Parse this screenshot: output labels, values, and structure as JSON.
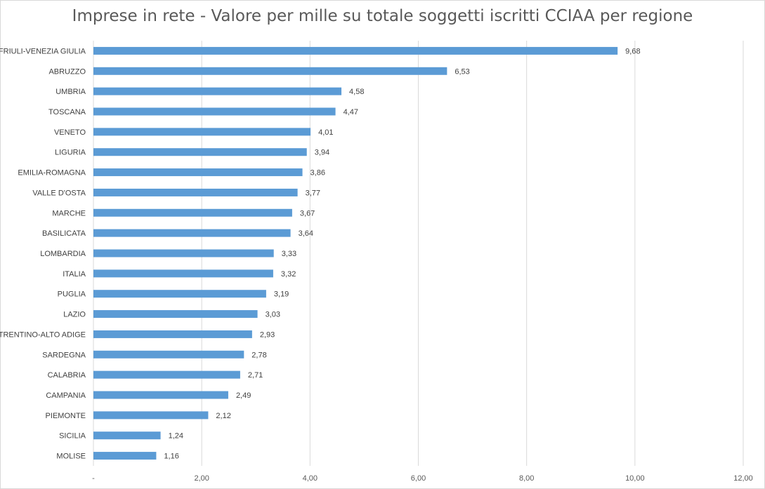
{
  "chart_data": {
    "type": "bar",
    "orientation": "horizontal",
    "title": "Imprese in rete - Valore per mille su totale soggetti iscritti CCIAA per regione",
    "xlabel": "",
    "ylabel": "",
    "xlim": [
      0,
      12
    ],
    "xticks": [
      0,
      2,
      4,
      6,
      8,
      10,
      12
    ],
    "xtick_labels": [
      "-",
      "2,00",
      "4,00",
      "6,00",
      "8,00",
      "10,00",
      "12,00"
    ],
    "grid": "vertical",
    "legend": "none",
    "bar_color": "#5b9bd5",
    "categories": [
      "FRIULI-VENEZIA GIULIA",
      "ABRUZZO",
      "UMBRIA",
      "TOSCANA",
      "VENETO",
      "LIGURIA",
      "EMILIA-ROMAGNA",
      "VALLE D'OSTA",
      "MARCHE",
      "BASILICATA",
      "LOMBARDIA",
      "ITALIA",
      "PUGLIA",
      "LAZIO",
      "TRENTINO-ALTO ADIGE",
      "SARDEGNA",
      "CALABRIA",
      "CAMPANIA",
      "PIEMONTE",
      "SICILIA",
      "MOLISE"
    ],
    "values": [
      9.68,
      6.53,
      4.58,
      4.47,
      4.01,
      3.94,
      3.86,
      3.77,
      3.67,
      3.64,
      3.33,
      3.32,
      3.19,
      3.03,
      2.93,
      2.78,
      2.71,
      2.49,
      2.12,
      1.24,
      1.16
    ],
    "value_labels": [
      "9,68",
      "6,53",
      "4,58",
      "4,47",
      "4,01",
      "3,94",
      "3,86",
      "3,77",
      "3,67",
      "3,64",
      "3,33",
      "3,32",
      "3,19",
      "3,03",
      "2,93",
      "2,78",
      "2,71",
      "2,49",
      "2,12",
      "1,24",
      "1,16"
    ]
  }
}
